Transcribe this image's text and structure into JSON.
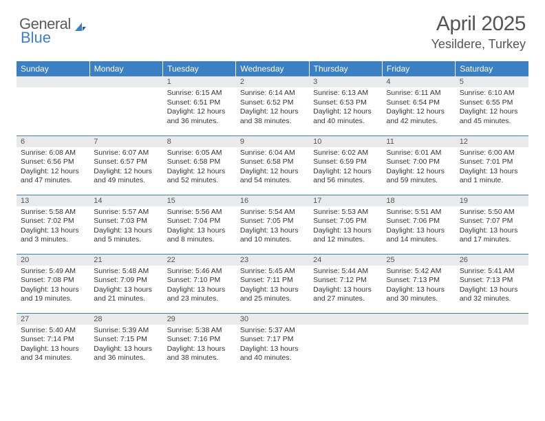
{
  "logo": {
    "text1": "General",
    "text2": "Blue",
    "accent_color": "#3b7fc4",
    "text_color": "#5a5a5a"
  },
  "header": {
    "month_title": "April 2025",
    "location": "Yesildere, Turkey"
  },
  "styling": {
    "header_bg": "#3b7fc4",
    "header_text": "#ffffff",
    "daynum_bg": "#e9eaec",
    "border_color": "#3b7fc4",
    "body_text": "#333333",
    "title_color": "#555555",
    "page_bg": "#ffffff",
    "title_fontsize": 30,
    "location_fontsize": 18,
    "dayhdr_fontsize": 12,
    "cell_fontsize": 10
  },
  "weekdays": [
    "Sunday",
    "Monday",
    "Tuesday",
    "Wednesday",
    "Thursday",
    "Friday",
    "Saturday"
  ],
  "weeks": [
    [
      {
        "day": "",
        "sunrise": "",
        "sunset": "",
        "daylight": ""
      },
      {
        "day": "",
        "sunrise": "",
        "sunset": "",
        "daylight": ""
      },
      {
        "day": "1",
        "sunrise": "Sunrise: 6:15 AM",
        "sunset": "Sunset: 6:51 PM",
        "daylight": "Daylight: 12 hours and 36 minutes."
      },
      {
        "day": "2",
        "sunrise": "Sunrise: 6:14 AM",
        "sunset": "Sunset: 6:52 PM",
        "daylight": "Daylight: 12 hours and 38 minutes."
      },
      {
        "day": "3",
        "sunrise": "Sunrise: 6:13 AM",
        "sunset": "Sunset: 6:53 PM",
        "daylight": "Daylight: 12 hours and 40 minutes."
      },
      {
        "day": "4",
        "sunrise": "Sunrise: 6:11 AM",
        "sunset": "Sunset: 6:54 PM",
        "daylight": "Daylight: 12 hours and 42 minutes."
      },
      {
        "day": "5",
        "sunrise": "Sunrise: 6:10 AM",
        "sunset": "Sunset: 6:55 PM",
        "daylight": "Daylight: 12 hours and 45 minutes."
      }
    ],
    [
      {
        "day": "6",
        "sunrise": "Sunrise: 6:08 AM",
        "sunset": "Sunset: 6:56 PM",
        "daylight": "Daylight: 12 hours and 47 minutes."
      },
      {
        "day": "7",
        "sunrise": "Sunrise: 6:07 AM",
        "sunset": "Sunset: 6:57 PM",
        "daylight": "Daylight: 12 hours and 49 minutes."
      },
      {
        "day": "8",
        "sunrise": "Sunrise: 6:05 AM",
        "sunset": "Sunset: 6:58 PM",
        "daylight": "Daylight: 12 hours and 52 minutes."
      },
      {
        "day": "9",
        "sunrise": "Sunrise: 6:04 AM",
        "sunset": "Sunset: 6:58 PM",
        "daylight": "Daylight: 12 hours and 54 minutes."
      },
      {
        "day": "10",
        "sunrise": "Sunrise: 6:02 AM",
        "sunset": "Sunset: 6:59 PM",
        "daylight": "Daylight: 12 hours and 56 minutes."
      },
      {
        "day": "11",
        "sunrise": "Sunrise: 6:01 AM",
        "sunset": "Sunset: 7:00 PM",
        "daylight": "Daylight: 12 hours and 59 minutes."
      },
      {
        "day": "12",
        "sunrise": "Sunrise: 6:00 AM",
        "sunset": "Sunset: 7:01 PM",
        "daylight": "Daylight: 13 hours and 1 minute."
      }
    ],
    [
      {
        "day": "13",
        "sunrise": "Sunrise: 5:58 AM",
        "sunset": "Sunset: 7:02 PM",
        "daylight": "Daylight: 13 hours and 3 minutes."
      },
      {
        "day": "14",
        "sunrise": "Sunrise: 5:57 AM",
        "sunset": "Sunset: 7:03 PM",
        "daylight": "Daylight: 13 hours and 5 minutes."
      },
      {
        "day": "15",
        "sunrise": "Sunrise: 5:56 AM",
        "sunset": "Sunset: 7:04 PM",
        "daylight": "Daylight: 13 hours and 8 minutes."
      },
      {
        "day": "16",
        "sunrise": "Sunrise: 5:54 AM",
        "sunset": "Sunset: 7:05 PM",
        "daylight": "Daylight: 13 hours and 10 minutes."
      },
      {
        "day": "17",
        "sunrise": "Sunrise: 5:53 AM",
        "sunset": "Sunset: 7:05 PM",
        "daylight": "Daylight: 13 hours and 12 minutes."
      },
      {
        "day": "18",
        "sunrise": "Sunrise: 5:51 AM",
        "sunset": "Sunset: 7:06 PM",
        "daylight": "Daylight: 13 hours and 14 minutes."
      },
      {
        "day": "19",
        "sunrise": "Sunrise: 5:50 AM",
        "sunset": "Sunset: 7:07 PM",
        "daylight": "Daylight: 13 hours and 17 minutes."
      }
    ],
    [
      {
        "day": "20",
        "sunrise": "Sunrise: 5:49 AM",
        "sunset": "Sunset: 7:08 PM",
        "daylight": "Daylight: 13 hours and 19 minutes."
      },
      {
        "day": "21",
        "sunrise": "Sunrise: 5:48 AM",
        "sunset": "Sunset: 7:09 PM",
        "daylight": "Daylight: 13 hours and 21 minutes."
      },
      {
        "day": "22",
        "sunrise": "Sunrise: 5:46 AM",
        "sunset": "Sunset: 7:10 PM",
        "daylight": "Daylight: 13 hours and 23 minutes."
      },
      {
        "day": "23",
        "sunrise": "Sunrise: 5:45 AM",
        "sunset": "Sunset: 7:11 PM",
        "daylight": "Daylight: 13 hours and 25 minutes."
      },
      {
        "day": "24",
        "sunrise": "Sunrise: 5:44 AM",
        "sunset": "Sunset: 7:12 PM",
        "daylight": "Daylight: 13 hours and 27 minutes."
      },
      {
        "day": "25",
        "sunrise": "Sunrise: 5:42 AM",
        "sunset": "Sunset: 7:13 PM",
        "daylight": "Daylight: 13 hours and 30 minutes."
      },
      {
        "day": "26",
        "sunrise": "Sunrise: 5:41 AM",
        "sunset": "Sunset: 7:13 PM",
        "daylight": "Daylight: 13 hours and 32 minutes."
      }
    ],
    [
      {
        "day": "27",
        "sunrise": "Sunrise: 5:40 AM",
        "sunset": "Sunset: 7:14 PM",
        "daylight": "Daylight: 13 hours and 34 minutes."
      },
      {
        "day": "28",
        "sunrise": "Sunrise: 5:39 AM",
        "sunset": "Sunset: 7:15 PM",
        "daylight": "Daylight: 13 hours and 36 minutes."
      },
      {
        "day": "29",
        "sunrise": "Sunrise: 5:38 AM",
        "sunset": "Sunset: 7:16 PM",
        "daylight": "Daylight: 13 hours and 38 minutes."
      },
      {
        "day": "30",
        "sunrise": "Sunrise: 5:37 AM",
        "sunset": "Sunset: 7:17 PM",
        "daylight": "Daylight: 13 hours and 40 minutes."
      },
      {
        "day": "",
        "sunrise": "",
        "sunset": "",
        "daylight": ""
      },
      {
        "day": "",
        "sunrise": "",
        "sunset": "",
        "daylight": ""
      },
      {
        "day": "",
        "sunrise": "",
        "sunset": "",
        "daylight": ""
      }
    ]
  ]
}
